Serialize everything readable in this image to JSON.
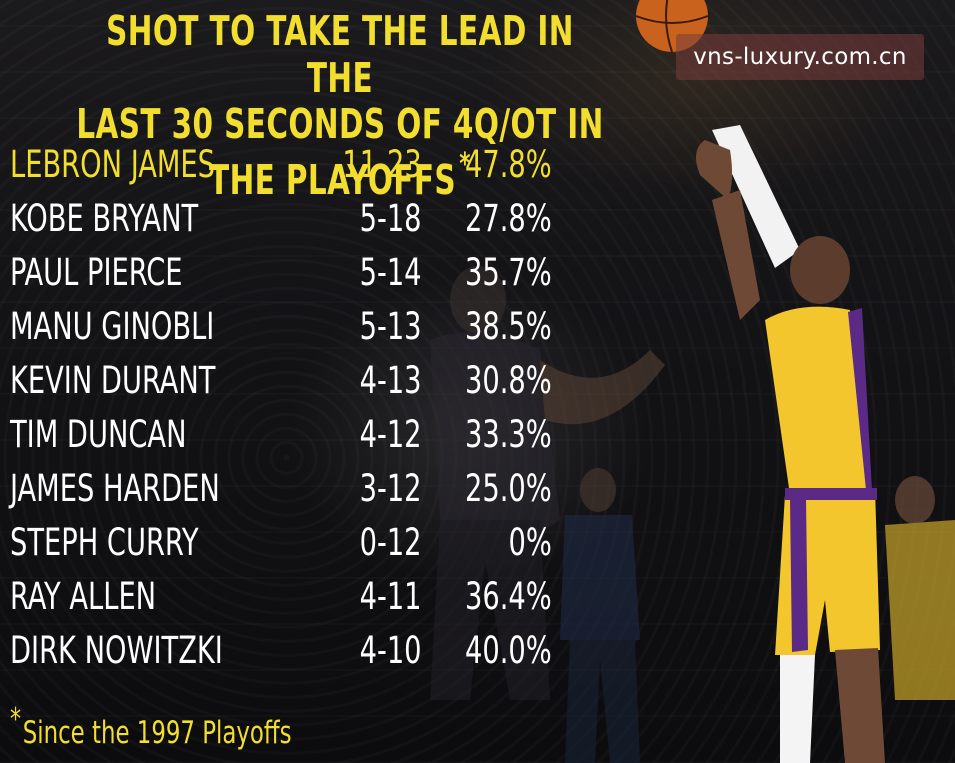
{
  "title": {
    "line1": "SHOT TO TAKE THE LEAD IN THE",
    "line2": "LAST 30 SECONDS OF 4Q/OT IN THE PLAYOFFS",
    "asterisk": "*"
  },
  "watermark": "vns-luxury.com.cn",
  "players": [
    {
      "name": "LEBRON JAMES",
      "made_attempts": "11-23",
      "pct": "47.8%",
      "highlight": true
    },
    {
      "name": "KOBE BRYANT",
      "made_attempts": "5-18",
      "pct": "27.8%"
    },
    {
      "name": "PAUL PIERCE",
      "made_attempts": "5-14",
      "pct": "35.7%"
    },
    {
      "name": "MANU GINOBLI",
      "made_attempts": "5-13",
      "pct": "38.5%"
    },
    {
      "name": "KEVIN DURANT",
      "made_attempts": "4-13",
      "pct": "30.8%"
    },
    {
      "name": "TIM DUNCAN",
      "made_attempts": "4-12",
      "pct": "33.3%"
    },
    {
      "name": "JAMES HARDEN",
      "made_attempts": "3-12",
      "pct": "25.0%"
    },
    {
      "name": "STEPH CURRY",
      "made_attempts": "0-12",
      "pct": "0%"
    },
    {
      "name": "RAY ALLEN",
      "made_attempts": "4-11",
      "pct": "36.4%"
    },
    {
      "name": "DIRK NOWITZKI",
      "made_attempts": "4-10",
      "pct": "40.0%"
    }
  ],
  "footnote": {
    "asterisk": "*",
    "text": "Since the 1997 Playoffs"
  },
  "colors": {
    "accent": "#f1de2f",
    "text": "#ffffff",
    "background": "#141316",
    "jersey_gold": "#f2c62c",
    "jersey_purple": "#5b2a86"
  }
}
